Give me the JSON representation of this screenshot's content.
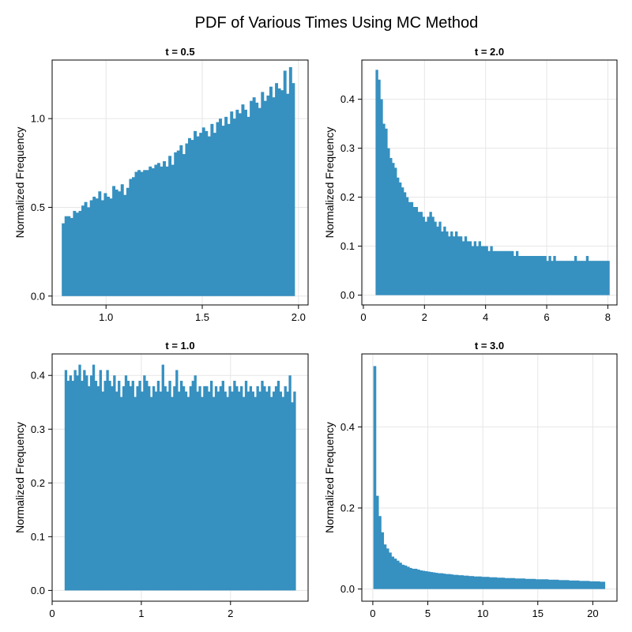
{
  "figure": {
    "title": "PDF of Various Times Using MC Method",
    "bar_color": "#3690c0"
  },
  "chart_data": [
    {
      "type": "bar",
      "title": "t = 0.5",
      "xlabel": "",
      "ylabel": "Normalized Frequency",
      "xlim": [
        0.72,
        2.05
      ],
      "ylim": [
        -0.05,
        1.33
      ],
      "xticks": [
        1.0,
        1.5,
        2.0
      ],
      "xtick_labels": [
        "1.0",
        "1.5",
        "2.0"
      ],
      "yticks": [
        0.0,
        0.5,
        1.0
      ],
      "ytick_labels": [
        "0.0",
        "0.5",
        "1.0"
      ],
      "grid": true,
      "bin_start": 0.77,
      "bin_end": 1.98,
      "values": [
        0.41,
        0.45,
        0.45,
        0.44,
        0.48,
        0.47,
        0.48,
        0.51,
        0.53,
        0.5,
        0.54,
        0.56,
        0.55,
        0.59,
        0.54,
        0.58,
        0.56,
        0.55,
        0.62,
        0.6,
        0.59,
        0.63,
        0.57,
        0.61,
        0.66,
        0.67,
        0.7,
        0.71,
        0.7,
        0.71,
        0.71,
        0.73,
        0.72,
        0.74,
        0.75,
        0.73,
        0.76,
        0.73,
        0.79,
        0.74,
        0.81,
        0.82,
        0.85,
        0.8,
        0.86,
        0.89,
        0.88,
        0.93,
        0.9,
        0.92,
        0.95,
        0.93,
        0.9,
        0.97,
        0.92,
        0.98,
        1.0,
        0.96,
        1.01,
        0.97,
        1.04,
        1.0,
        1.05,
        1.03,
        1.08,
        1.05,
        1.01,
        1.1,
        1.12,
        1.09,
        1.06,
        1.15,
        1.1,
        1.13,
        1.18,
        1.12,
        1.2,
        1.17,
        1.16,
        1.27,
        1.14,
        1.29,
        1.2
      ]
    },
    {
      "type": "bar",
      "title": "t = 2.0",
      "xlabel": "",
      "ylabel": "Normalized Frequency",
      "xlim": [
        -0.05,
        8.3
      ],
      "ylim": [
        -0.02,
        0.48
      ],
      "xticks": [
        0,
        2,
        4,
        6,
        8
      ],
      "xtick_labels": [
        "0",
        "2",
        "4",
        "6",
        "8"
      ],
      "yticks": [
        0.0,
        0.1,
        0.2,
        0.3,
        0.4
      ],
      "ytick_labels": [
        "0.0",
        "0.1",
        "0.2",
        "0.3",
        "0.4"
      ],
      "grid": true,
      "bin_start": 0.4,
      "bin_end": 8.05,
      "values": [
        0.46,
        0.44,
        0.4,
        0.35,
        0.34,
        0.3,
        0.28,
        0.27,
        0.26,
        0.24,
        0.23,
        0.22,
        0.21,
        0.2,
        0.19,
        0.19,
        0.18,
        0.18,
        0.17,
        0.17,
        0.16,
        0.15,
        0.16,
        0.17,
        0.16,
        0.15,
        0.14,
        0.15,
        0.13,
        0.14,
        0.13,
        0.12,
        0.13,
        0.12,
        0.13,
        0.12,
        0.12,
        0.11,
        0.12,
        0.11,
        0.11,
        0.1,
        0.11,
        0.1,
        0.11,
        0.1,
        0.1,
        0.1,
        0.09,
        0.1,
        0.09,
        0.09,
        0.09,
        0.09,
        0.09,
        0.09,
        0.09,
        0.09,
        0.09,
        0.08,
        0.09,
        0.08,
        0.08,
        0.08,
        0.08,
        0.08,
        0.08,
        0.08,
        0.08,
        0.08,
        0.08,
        0.08,
        0.08,
        0.07,
        0.08,
        0.07,
        0.08,
        0.07,
        0.07,
        0.07,
        0.07,
        0.07,
        0.07,
        0.07,
        0.07,
        0.08,
        0.07,
        0.07,
        0.07,
        0.07,
        0.08,
        0.07,
        0.07,
        0.07,
        0.07,
        0.07,
        0.07,
        0.07,
        0.07,
        0.07
      ]
    },
    {
      "type": "bar",
      "title": "t = 1.0",
      "xlabel": "",
      "ylabel": "Normalized Frequency",
      "xlim": [
        0.0,
        2.87
      ],
      "ylim": [
        -0.02,
        0.44
      ],
      "xticks": [
        0,
        1,
        2
      ],
      "xtick_labels": [
        "0",
        "1",
        "2"
      ],
      "yticks": [
        0.0,
        0.1,
        0.2,
        0.3,
        0.4
      ],
      "ytick_labels": [
        "0.0",
        "0.1",
        "0.2",
        "0.3",
        "0.4"
      ],
      "grid": true,
      "bin_start": 0.14,
      "bin_end": 2.73,
      "values": [
        0.41,
        0.39,
        0.4,
        0.39,
        0.41,
        0.4,
        0.42,
        0.39,
        0.41,
        0.4,
        0.38,
        0.4,
        0.42,
        0.39,
        0.38,
        0.41,
        0.37,
        0.39,
        0.41,
        0.39,
        0.38,
        0.4,
        0.37,
        0.39,
        0.36,
        0.38,
        0.4,
        0.39,
        0.38,
        0.39,
        0.36,
        0.38,
        0.39,
        0.37,
        0.4,
        0.39,
        0.38,
        0.36,
        0.38,
        0.37,
        0.39,
        0.37,
        0.42,
        0.38,
        0.37,
        0.39,
        0.36,
        0.38,
        0.41,
        0.37,
        0.39,
        0.38,
        0.37,
        0.36,
        0.38,
        0.39,
        0.4,
        0.37,
        0.38,
        0.36,
        0.38,
        0.38,
        0.37,
        0.39,
        0.36,
        0.38,
        0.37,
        0.38,
        0.39,
        0.37,
        0.36,
        0.38,
        0.37,
        0.39,
        0.38,
        0.37,
        0.38,
        0.36,
        0.39,
        0.37,
        0.38,
        0.37,
        0.36,
        0.38,
        0.37,
        0.39,
        0.38,
        0.37,
        0.38,
        0.36,
        0.37,
        0.38,
        0.39,
        0.37,
        0.36,
        0.38,
        0.37,
        0.4,
        0.35,
        0.37
      ]
    },
    {
      "type": "bar",
      "title": "t = 3.0",
      "xlabel": "",
      "ylabel": "Normalized Frequency",
      "xlim": [
        -1.0,
        22.2
      ],
      "ylim": [
        -0.03,
        0.58
      ],
      "xticks": [
        0,
        5,
        10,
        15,
        20
      ],
      "xtick_labels": [
        "0",
        "5",
        "10",
        "15",
        "20"
      ],
      "yticks": [
        0.0,
        0.2,
        0.4
      ],
      "ytick_labels": [
        "0.0",
        "0.2",
        "0.4"
      ],
      "grid": true,
      "bin_start": 0.05,
      "bin_end": 21.1,
      "values": [
        0.55,
        0.23,
        0.18,
        0.14,
        0.11,
        0.1,
        0.09,
        0.08,
        0.075,
        0.07,
        0.065,
        0.06,
        0.058,
        0.055,
        0.052,
        0.05,
        0.05,
        0.048,
        0.046,
        0.045,
        0.044,
        0.043,
        0.042,
        0.041,
        0.04,
        0.039,
        0.039,
        0.038,
        0.037,
        0.037,
        0.036,
        0.035,
        0.035,
        0.034,
        0.034,
        0.033,
        0.033,
        0.032,
        0.032,
        0.031,
        0.031,
        0.031,
        0.03,
        0.03,
        0.03,
        0.029,
        0.029,
        0.029,
        0.028,
        0.028,
        0.028,
        0.027,
        0.027,
        0.027,
        0.027,
        0.026,
        0.026,
        0.026,
        0.026,
        0.025,
        0.025,
        0.025,
        0.025,
        0.024,
        0.024,
        0.024,
        0.024,
        0.024,
        0.023,
        0.023,
        0.023,
        0.023,
        0.022,
        0.022,
        0.022,
        0.022,
        0.021,
        0.021,
        0.021,
        0.021,
        0.02,
        0.02,
        0.02,
        0.02,
        0.019,
        0.019,
        0.019,
        0.019,
        0.018,
        0.018
      ]
    }
  ]
}
